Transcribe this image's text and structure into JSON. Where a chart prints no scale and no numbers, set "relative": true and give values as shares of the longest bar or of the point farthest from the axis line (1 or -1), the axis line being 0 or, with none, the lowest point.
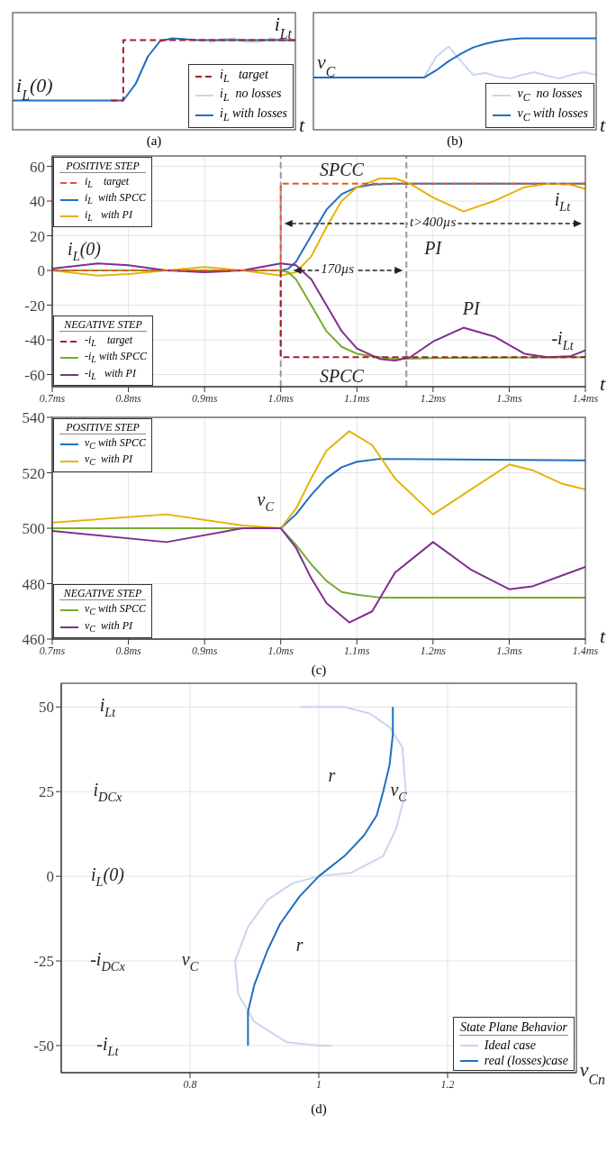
{
  "chart_data": [
    {
      "type": "line",
      "relative": true,
      "categories": [
        null,
        null,
        null,
        null,
        null,
        null,
        null,
        null,
        null,
        null,
        null,
        null,
        null,
        null,
        null,
        null,
        null,
        null,
        null,
        null,
        null,
        null,
        null,
        null
      ],
      "xlabel": "t",
      "legend": "bottom right",
      "series": [
        {
          "name": "i$_{L}$   target",
          "type": "step",
          "line_style": "dashed",
          "color": "#a0202a",
          "values": [
            null,
            null,
            null,
            null,
            null,
            null,
            null,
            null,
            0.32,
            0.98,
            0.98,
            0.98,
            0.98,
            0.98,
            0.98,
            0.98,
            0.98,
            0.98,
            0.98,
            0.98,
            0.98,
            0.98,
            0.98,
            0.98
          ]
        },
        {
          "name": "i$_{L}$  no losses",
          "color": "#c9d6ee",
          "values": [
            null,
            null,
            null,
            null,
            null,
            null,
            null,
            null,
            null,
            null,
            null,
            null,
            null,
            null,
            null,
            null,
            0.95,
            0.99,
            1.0,
            0.96,
            0.96,
            1.0,
            0.98,
            0.97
          ]
        },
        {
          "name": "i$_{L}$ with losses",
          "color": "#1f6fc0",
          "values": [
            0.32,
            0.32,
            0.32,
            0.32,
            0.32,
            0.32,
            0.32,
            0.32,
            0.32,
            0.32,
            0.5,
            0.8,
            0.97,
            1.0,
            0.99,
            0.98,
            0.98,
            0.98,
            0.98,
            0.98,
            0.98,
            0.98,
            0.98,
            0.98
          ]
        }
      ],
      "annotations": [
        {
          "text": "i$_{Lt}$",
          "y": 0.98
        },
        {
          "text": "i$_{L}$(0)",
          "y": 0.32
        },
        "(a)"
      ]
    },
    {
      "type": "line",
      "relative": true,
      "categories": [
        null,
        null,
        null,
        null,
        null,
        null,
        null,
        null,
        null,
        null,
        null,
        null,
        null,
        null,
        null,
        null,
        null,
        null,
        null,
        null,
        null,
        null,
        null,
        null
      ],
      "xlabel": "t",
      "legend": "bottom right",
      "series": [
        {
          "name": "v$_{C}$  no losses",
          "color": "#c9d6ee",
          "values": [
            null,
            null,
            null,
            null,
            null,
            null,
            null,
            null,
            null,
            0.57,
            0.8,
            0.91,
            0.75,
            0.6,
            0.62,
            0.58,
            0.56,
            0.6,
            0.63,
            0.59,
            0.56,
            0.6,
            0.63,
            0.6
          ]
        },
        {
          "name": "v$_{C}$ with losses",
          "color": "#1f6fc0",
          "values": [
            0.57,
            0.57,
            0.57,
            0.57,
            0.57,
            0.57,
            0.57,
            0.57,
            0.57,
            0.57,
            0.65,
            0.75,
            0.83,
            0.9,
            0.94,
            0.97,
            0.99,
            1.0,
            1.0,
            1.0,
            1.0,
            1.0,
            1.0,
            1.0
          ]
        }
      ],
      "annotations": [
        {
          "text": "v$_{C}$",
          "y": 0.57
        },
        "(b)"
      ]
    },
    {
      "type": "line",
      "xlabel": "t",
      "legend": "left",
      "grid": true,
      "xlim": [
        0.7,
        1.4
      ],
      "ylim": [
        -67,
        66
      ],
      "xticks": [
        {
          "value": 0.7,
          "label": "0.7ms"
        },
        {
          "value": 0.8,
          "label": "0.8ms"
        },
        {
          "value": 0.9,
          "label": "0.9ms"
        },
        {
          "value": 1.0,
          "label": "1.0ms"
        },
        {
          "value": 1.1,
          "label": "1.1ms"
        },
        {
          "value": 1.2,
          "label": "1.2ms"
        },
        {
          "value": 1.3,
          "label": "1.3ms"
        },
        {
          "value": 1.4,
          "label": "1.4ms"
        }
      ],
      "yticks": [
        -60,
        -40,
        -20,
        0,
        20,
        40,
        60
      ],
      "series": [
        {
          "name": "i$_{L}$    target",
          "type": "step",
          "line_style": "dashed",
          "color": "#e0582a",
          "x": [
            0.7,
            1.0,
            1.4
          ],
          "values": [
            0,
            50,
            50
          ]
        },
        {
          "name": "i$_{L}$  with SPCC",
          "color": "#1f6fc0",
          "x": [
            0.7,
            1.0,
            1.01,
            1.02,
            1.04,
            1.06,
            1.08,
            1.1,
            1.12,
            1.15,
            1.2,
            1.4
          ],
          "values": [
            0,
            0,
            1,
            5,
            20,
            35,
            44,
            48,
            49.5,
            50,
            50,
            50
          ]
        },
        {
          "name": "i$_{L}$   with PI",
          "color": "#e8b10a",
          "x": [
            0.7,
            0.76,
            0.8,
            0.85,
            0.9,
            0.95,
            1.0,
            1.02,
            1.04,
            1.06,
            1.08,
            1.1,
            1.13,
            1.15,
            1.17,
            1.2,
            1.24,
            1.28,
            1.32,
            1.35,
            1.38,
            1.4
          ],
          "values": [
            0,
            -3,
            -2,
            0,
            2,
            0,
            -3,
            -1,
            8,
            25,
            40,
            48,
            53,
            53,
            50,
            42,
            34,
            40,
            48,
            50,
            49.5,
            47
          ]
        },
        {
          "name": "-i$_{L}$    target",
          "type": "step",
          "line_style": "dashed",
          "color": "#a0202a",
          "x": [
            1.0,
            1.0,
            1.4
          ],
          "values": [
            0,
            -50,
            -50
          ]
        },
        {
          "name": "-i$_{L}$ with SPCC",
          "color": "#77ac30",
          "x": [
            0.7,
            1.0,
            1.01,
            1.02,
            1.04,
            1.06,
            1.08,
            1.1,
            1.12,
            1.15,
            1.2,
            1.4
          ],
          "values": [
            0,
            0,
            -1,
            -5,
            -20,
            -35,
            -44,
            -48,
            -49.5,
            -51,
            -50.5,
            -50
          ]
        },
        {
          "name": "-i$_{L}$   with PI",
          "color": "#7e2f8e",
          "x": [
            0.7,
            0.76,
            0.8,
            0.85,
            0.9,
            0.95,
            1.0,
            1.02,
            1.04,
            1.06,
            1.08,
            1.1,
            1.13,
            1.15,
            1.17,
            1.2,
            1.24,
            1.28,
            1.32,
            1.35,
            1.38,
            1.4
          ],
          "values": [
            1,
            4,
            3,
            0,
            -1,
            0,
            4,
            3,
            -5,
            -20,
            -35,
            -45,
            -51,
            -52,
            -50,
            -41,
            -33,
            -38,
            -48,
            -50,
            -49.5,
            -46
          ]
        }
      ],
      "ref_lines": [
        {
          "axis": "x",
          "value": 1.0,
          "color": "#999999",
          "line_style": "dashed"
        },
        {
          "axis": "x",
          "value": 1.165,
          "color": "#999999",
          "line_style": "dashed"
        }
      ],
      "annotations": [
        "POSITIVE STEP",
        "NEGATIVE STEP",
        "t>400µs",
        "170µs",
        "SPCC",
        "PI",
        "PI",
        "SPCC",
        "i$_{Lt}$",
        "-i$_{Lt}$",
        "i$_{L}$(0)"
      ]
    },
    {
      "type": "line",
      "xlabel": "t",
      "legend": "left",
      "grid": true,
      "xlim": [
        0.7,
        1.4
      ],
      "ylim": [
        460,
        540
      ],
      "xticks": [
        {
          "value": 0.7,
          "label": "0.7ms"
        },
        {
          "value": 0.8,
          "label": "0.8ms"
        },
        {
          "value": 0.9,
          "label": "0.9ms"
        },
        {
          "value": 1.0,
          "label": "1.0ms"
        },
        {
          "value": 1.1,
          "label": "1.1ms"
        },
        {
          "value": 1.2,
          "label": "1.2ms"
        },
        {
          "value": 1.3,
          "label": "1.3ms"
        },
        {
          "value": 1.4,
          "label": "1.4ms"
        }
      ],
      "yticks": [
        460,
        480,
        500,
        520,
        540
      ],
      "series": [
        {
          "name": "v$_{C}$ with SPCC",
          "color": "#1f6fc0",
          "x": [
            0.7,
            1.0,
            1.02,
            1.04,
            1.06,
            1.08,
            1.1,
            1.13,
            1.4
          ],
          "values": [
            500,
            500,
            505,
            512,
            518,
            522,
            524,
            525,
            524.5
          ]
        },
        {
          "name": "v$_{C}$  with PI",
          "color": "#e8b10a",
          "x": [
            0.7,
            0.85,
            0.95,
            1.0,
            1.02,
            1.04,
            1.06,
            1.09,
            1.12,
            1.15,
            1.2,
            1.25,
            1.3,
            1.33,
            1.37,
            1.4
          ],
          "values": [
            502,
            505,
            501,
            500,
            507,
            518,
            528,
            535,
            530,
            518,
            505,
            514,
            523,
            521,
            516,
            514
          ]
        },
        {
          "name": "v$_{C}$ with SPCC",
          "color": "#77ac30",
          "x": [
            0.7,
            1.0,
            1.02,
            1.04,
            1.06,
            1.08,
            1.1,
            1.13,
            1.4
          ],
          "values": [
            500,
            500,
            494,
            487,
            481,
            477,
            476,
            475,
            475
          ]
        },
        {
          "name": "v$_{C}$  with PI",
          "color": "#7e2f8e",
          "x": [
            0.7,
            0.85,
            0.95,
            1.0,
            1.02,
            1.04,
            1.06,
            1.09,
            1.12,
            1.15,
            1.2,
            1.25,
            1.3,
            1.33,
            1.37,
            1.4
          ],
          "values": [
            499,
            495,
            500,
            500,
            493,
            482,
            473,
            466,
            470,
            484,
            495,
            485,
            478,
            479,
            483,
            486
          ]
        }
      ],
      "annotations": [
        "POSITIVE STEP",
        "NEGATIVE STEP",
        "(c)",
        "v$_{C}$"
      ]
    },
    {
      "type": "line",
      "xlabel": "v$_{Cn}$",
      "legend": "bottom right",
      "legend_title": "State Plane Behavior",
      "grid": true,
      "xlim": [
        0.6,
        1.4
      ],
      "ylim": [
        -58,
        57
      ],
      "xticks": [
        0.8,
        1,
        1.2
      ],
      "yticks": [
        -50,
        -25,
        0,
        25,
        50
      ],
      "series": [
        {
          "name": "Ideal case",
          "color": "#c9d6ee",
          "x": [
            0.97,
            1.02,
            1.04,
            1.08,
            1.11,
            1.13,
            1.135,
            1.12,
            1.1,
            1.05,
            1.0,
            0.96,
            0.92,
            0.89,
            0.87,
            0.875,
            0.9,
            0.95,
            1.0,
            1.02
          ],
          "values": [
            50,
            50,
            50,
            48,
            44,
            38,
            25,
            14,
            6,
            1,
            0,
            -2,
            -7,
            -15,
            -25,
            -35,
            -43,
            -49,
            -50,
            -50
          ]
        },
        {
          "name": "real (losses)case",
          "color": "#1f6fc0",
          "x": [
            0.89,
            0.89,
            0.9,
            0.92,
            0.94,
            0.97,
            1.0,
            1.04,
            1.07,
            1.09,
            1.1,
            1.11,
            1.115,
            1.115
          ],
          "values": [
            -50,
            -40,
            -32,
            -22,
            -14,
            -6,
            0,
            6,
            12,
            18,
            25,
            33,
            42,
            50
          ]
        }
      ],
      "annotations": [
        "(d)",
        "i$_{Lt}$",
        "i$_{DCx}$",
        "i$_{L}$(0)",
        "-i$_{DCx}$",
        "-i$_{Lt}$",
        "r",
        "r",
        "v$_{C}$",
        "v$_{C}$"
      ]
    }
  ]
}
